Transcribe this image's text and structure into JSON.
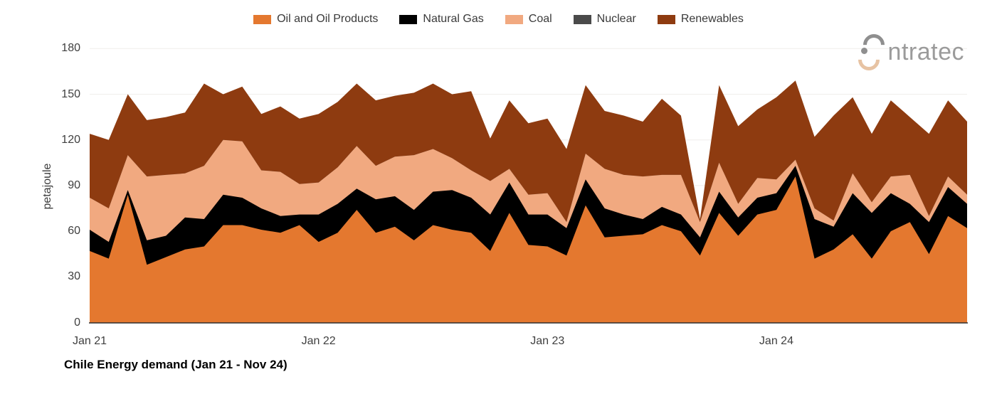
{
  "branding": {
    "logo_text": "intratec"
  },
  "chart_data": {
    "type": "area",
    "stacked": true,
    "title": "Chile Energy demand (Jan 21 - Nov 24)",
    "ylabel": "petajoule",
    "ylim": [
      0,
      180
    ],
    "y_ticks": [
      0,
      30,
      60,
      90,
      120,
      150,
      180
    ],
    "x_unit": "month",
    "x_range": "Jan 21 - Nov 24",
    "x_ticks": [
      {
        "index": 0,
        "label": "Jan 21"
      },
      {
        "index": 12,
        "label": "Jan 22"
      },
      {
        "index": 24,
        "label": "Jan 23"
      },
      {
        "index": 36,
        "label": "Jan 24"
      }
    ],
    "legend_position": "top",
    "grid": "horizontal-faint",
    "series": [
      {
        "name": "Oil and Oil Products",
        "color": "#E4782F",
        "values": [
          47,
          42,
          84,
          38,
          43,
          48,
          50,
          64,
          64,
          61,
          59,
          64,
          53,
          59,
          74,
          59,
          63,
          54,
          64,
          61,
          59,
          47,
          72,
          51,
          50,
          44,
          77,
          56,
          57,
          58,
          64,
          60,
          44,
          72,
          57,
          71,
          74,
          96,
          42,
          48,
          58,
          42,
          60,
          66,
          45,
          70,
          62
        ]
      },
      {
        "name": "Natural Gas",
        "color": "#000000",
        "values": [
          14,
          11,
          3,
          16,
          14,
          21,
          18,
          20,
          18,
          14,
          11,
          7,
          18,
          19,
          14,
          22,
          20,
          20,
          22,
          26,
          23,
          24,
          20,
          20,
          21,
          18,
          17,
          19,
          14,
          10,
          12,
          11,
          12,
          14,
          12,
          11,
          11,
          7,
          26,
          15,
          27,
          30,
          25,
          12,
          21,
          19,
          16
        ]
      },
      {
        "name": "Coal",
        "color": "#F1A980",
        "values": [
          21,
          22,
          23,
          42,
          40,
          29,
          35,
          36,
          37,
          25,
          29,
          20,
          21,
          24,
          28,
          22,
          26,
          36,
          28,
          21,
          18,
          22,
          9,
          13,
          14,
          4,
          17,
          26,
          26,
          28,
          21,
          26,
          10,
          19,
          9,
          13,
          9,
          4,
          7,
          4,
          13,
          7,
          11,
          19,
          4,
          7,
          6
        ]
      },
      {
        "name": "Nuclear",
        "color": "#4A4A4A",
        "values": [
          0,
          0,
          0,
          0,
          0,
          0,
          0,
          0,
          0,
          0,
          0,
          0,
          0,
          0,
          0,
          0,
          0,
          0,
          0,
          0,
          0,
          0,
          0,
          0,
          0,
          0,
          0,
          0,
          0,
          0,
          0,
          0,
          0,
          0,
          0,
          0,
          0,
          0,
          0,
          0,
          0,
          0,
          0,
          0,
          0,
          0,
          0
        ]
      },
      {
        "name": "Renewables",
        "color": "#8E3B10",
        "values": [
          42,
          45,
          40,
          37,
          38,
          40,
          54,
          30,
          36,
          37,
          43,
          43,
          45,
          43,
          41,
          43,
          40,
          41,
          43,
          42,
          52,
          28,
          45,
          47,
          49,
          48,
          45,
          38,
          39,
          36,
          50,
          39,
          2,
          51,
          51,
          45,
          54,
          52,
          47,
          69,
          50,
          45,
          50,
          38,
          54,
          50,
          48
        ]
      }
    ],
    "axis_line_color": "#2e2e2e",
    "gridline_color": "#f0eeec"
  }
}
